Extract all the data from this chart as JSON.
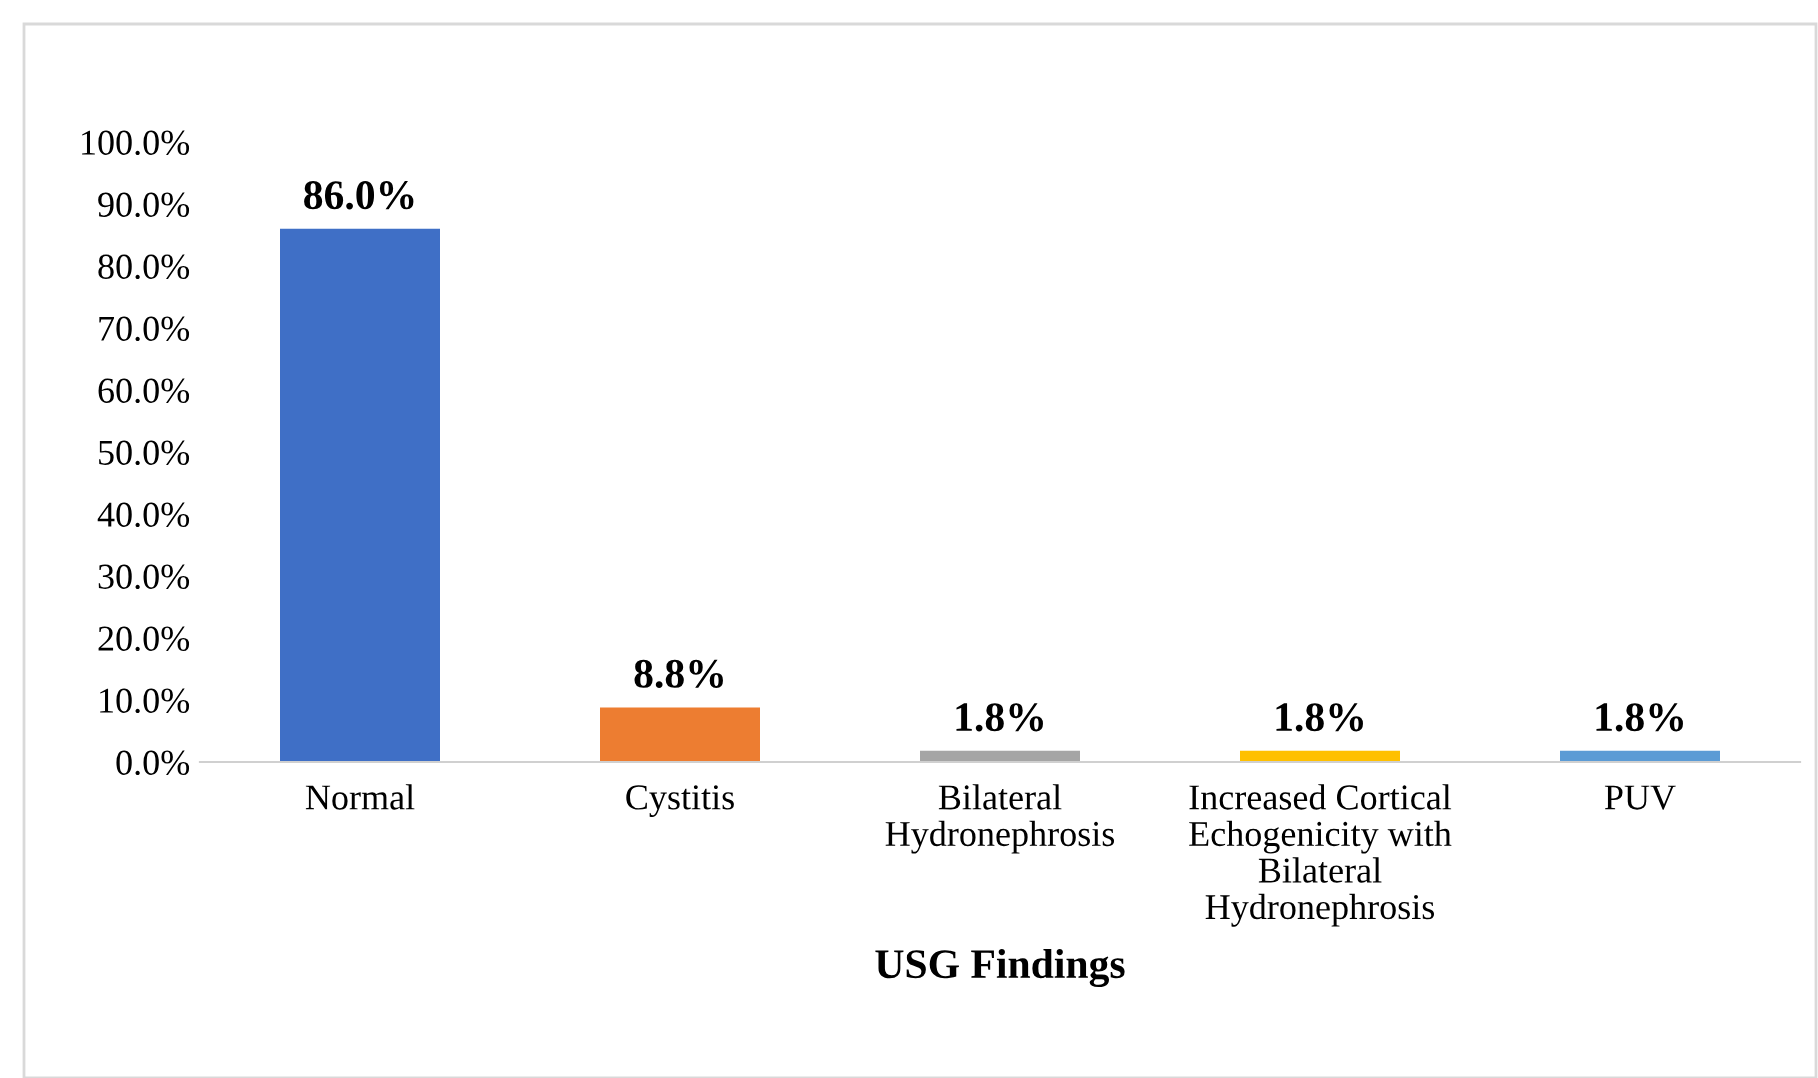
{
  "chart_data": {
    "type": "bar",
    "xlabel": "USG Findings",
    "categories": [
      "Normal",
      "Cystitis",
      "Bilateral\nHydronephrosis",
      "Increased Cortical\nEchogenicity with\nBilateral\nHydronephrosis",
      "PUV"
    ],
    "values": [
      86.0,
      8.8,
      1.8,
      1.8,
      1.8
    ],
    "colors": [
      "#3f6fc6",
      "#ed7d31",
      "#a5a5a5",
      "#ffc000",
      "#5b9bd5"
    ],
    "value_labels": [
      "86.0%",
      "8.8%",
      "1.8%",
      "1.8%",
      "1.8%"
    ],
    "ylim": [
      0,
      100
    ],
    "yticks": [
      {
        "value": 0,
        "label": "0.0%"
      },
      {
        "value": 10,
        "label": "10.0%"
      },
      {
        "value": 20,
        "label": "20.0%"
      },
      {
        "value": 30,
        "label": "30.0%"
      },
      {
        "value": 40,
        "label": "40.0%"
      },
      {
        "value": 50,
        "label": "50.0%"
      },
      {
        "value": 60,
        "label": "60.0%"
      },
      {
        "value": 70,
        "label": "70.0%"
      },
      {
        "value": 80,
        "label": "80.0%"
      },
      {
        "value": 90,
        "label": "90.0%"
      },
      {
        "value": 100,
        "label": "100.0%"
      }
    ],
    "grid": false,
    "legend": false
  }
}
